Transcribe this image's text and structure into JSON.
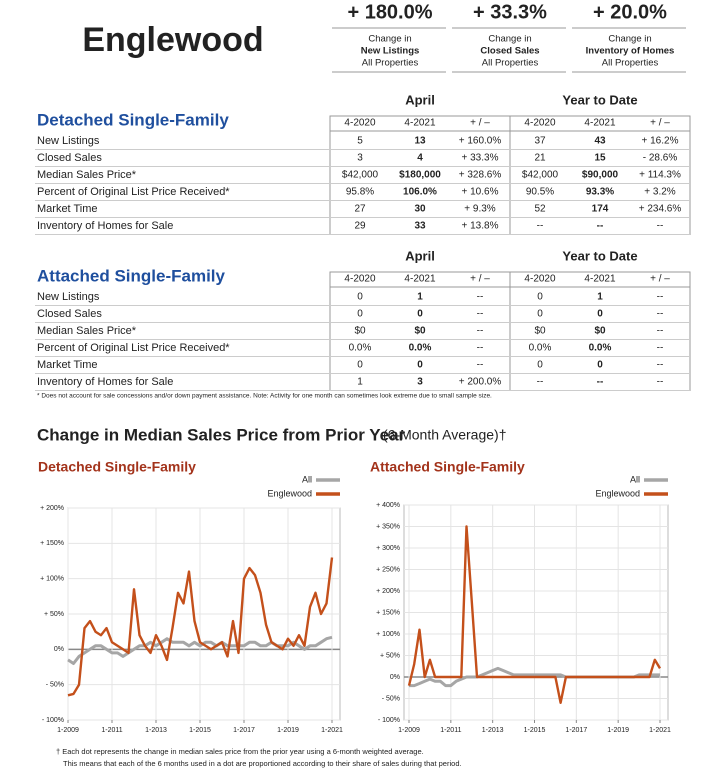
{
  "header": {
    "title": "Englewood",
    "metrics": [
      {
        "value": "+ 180.0%",
        "line1": "Change in",
        "line2": "New Listings",
        "line3": "All Properties"
      },
      {
        "value": "+ 33.3%",
        "line1": "Change in",
        "line2": "Closed Sales",
        "line3": "All Properties"
      },
      {
        "value": "+ 20.0%",
        "line1": "Change in",
        "line2": "Inventory of Homes",
        "line3": "All Properties"
      }
    ]
  },
  "tables": [
    {
      "title": "Detached Single-Family",
      "period1": "April",
      "period2": "Year to Date",
      "columns": [
        "4-2020",
        "4-2021",
        "+ / –",
        "4-2020",
        "4-2021",
        "+ / –"
      ],
      "rows": [
        [
          "New Listings",
          "5",
          "13",
          "+ 160.0%",
          "37",
          "43",
          "+ 16.2%"
        ],
        [
          "Closed Sales",
          "3",
          "4",
          "+ 33.3%",
          "21",
          "15",
          "- 28.6%"
        ],
        [
          "Median Sales Price*",
          "$42,000",
          "$180,000",
          "+ 328.6%",
          "$42,000",
          "$90,000",
          "+ 114.3%"
        ],
        [
          "Percent of Original List Price Received*",
          "95.8%",
          "106.0%",
          "+ 10.6%",
          "90.5%",
          "93.3%",
          "+ 3.2%"
        ],
        [
          "Market Time",
          "27",
          "30",
          "+ 9.3%",
          "52",
          "174",
          "+ 234.6%"
        ],
        [
          "Inventory of Homes for Sale",
          "29",
          "33",
          "+ 13.8%",
          "--",
          "--",
          "--"
        ]
      ]
    },
    {
      "title": "Attached Single-Family",
      "period1": "April",
      "period2": "Year to Date",
      "columns": [
        "4-2020",
        "4-2021",
        "+ / –",
        "4-2020",
        "4-2021",
        "+ / –"
      ],
      "rows": [
        [
          "New Listings",
          "0",
          "1",
          "--",
          "0",
          "1",
          "--"
        ],
        [
          "Closed Sales",
          "0",
          "0",
          "--",
          "0",
          "0",
          "--"
        ],
        [
          "Median Sales Price*",
          "$0",
          "$0",
          "--",
          "$0",
          "$0",
          "--"
        ],
        [
          "Percent of Original List Price Received*",
          "0.0%",
          "0.0%",
          "--",
          "0.0%",
          "0.0%",
          "--"
        ],
        [
          "Market Time",
          "0",
          "0",
          "--",
          "0",
          "0",
          "--"
        ],
        [
          "Inventory of Homes for Sale",
          "1",
          "3",
          "+ 200.0%",
          "--",
          "--",
          "--"
        ]
      ]
    }
  ],
  "table_note": "* Does not account for sale concessions and/or down payment assistance. Note: Activity for one month can sometimes look extreme due to small sample size.",
  "section_title": "Change in Median Sales Price from Prior Year",
  "section_subtitle": "(6-Month Average)†",
  "chart_data": [
    {
      "type": "line",
      "title": "Detached Single-Family",
      "legend": "top-right",
      "grid": true,
      "x": [
        "1-2009",
        "4-2009",
        "7-2009",
        "10-2009",
        "1-2010",
        "4-2010",
        "7-2010",
        "10-2010",
        "1-2011",
        "4-2011",
        "7-2011",
        "10-2011",
        "1-2012",
        "4-2012",
        "7-2012",
        "10-2012",
        "1-2013",
        "4-2013",
        "7-2013",
        "10-2013",
        "1-2014",
        "4-2014",
        "7-2014",
        "10-2014",
        "1-2015",
        "4-2015",
        "7-2015",
        "10-2015",
        "1-2016",
        "4-2016",
        "7-2016",
        "10-2016",
        "1-2017",
        "4-2017",
        "7-2017",
        "10-2017",
        "1-2018",
        "4-2018",
        "7-2018",
        "10-2018",
        "1-2019",
        "4-2019",
        "7-2019",
        "10-2019",
        "1-2020",
        "4-2020",
        "7-2020",
        "10-2020",
        "1-2021"
      ],
      "xticks": [
        "1-2009",
        "1-2011",
        "1-2013",
        "1-2015",
        "1-2017",
        "1-2019",
        "1-2021"
      ],
      "ylim": [
        -100,
        200
      ],
      "yticks": [
        {
          "value": -100,
          "label": "- 100%"
        },
        {
          "value": -50,
          "label": "- 50%"
        },
        {
          "value": 0,
          "label": "0%"
        },
        {
          "value": 50,
          "label": "+ 50%"
        },
        {
          "value": 100,
          "label": "+ 100%"
        },
        {
          "value": 150,
          "label": "+ 150%"
        },
        {
          "value": 200,
          "label": "+ 200%"
        }
      ],
      "series": [
        {
          "name": "All",
          "color": "#a6a6a6",
          "values": [
            -15,
            -20,
            -10,
            -5,
            0,
            5,
            5,
            0,
            -5,
            -5,
            -10,
            -5,
            0,
            5,
            5,
            10,
            5,
            10,
            15,
            10,
            10,
            10,
            5,
            10,
            5,
            10,
            10,
            5,
            10,
            5,
            5,
            5,
            5,
            10,
            10,
            5,
            5,
            10,
            5,
            5,
            5,
            10,
            5,
            0,
            5,
            5,
            10,
            15,
            17
          ]
        },
        {
          "name": "Englewood",
          "color": "#c4501b",
          "values": [
            -65,
            -63,
            -50,
            30,
            40,
            25,
            20,
            30,
            10,
            5,
            0,
            -5,
            85,
            20,
            5,
            -5,
            20,
            5,
            -15,
            30,
            80,
            65,
            110,
            40,
            10,
            5,
            0,
            5,
            10,
            -10,
            40,
            -5,
            100,
            115,
            105,
            80,
            35,
            10,
            5,
            0,
            15,
            5,
            20,
            5,
            60,
            80,
            50,
            65,
            130
          ]
        }
      ]
    },
    {
      "type": "line",
      "title": "Attached Single-Family",
      "legend": "top-right",
      "grid": true,
      "x": [
        "1-2009",
        "4-2009",
        "7-2009",
        "10-2009",
        "1-2010",
        "4-2010",
        "7-2010",
        "10-2010",
        "1-2011",
        "4-2011",
        "7-2011",
        "10-2011",
        "1-2012",
        "4-2012",
        "7-2012",
        "10-2012",
        "1-2013",
        "4-2013",
        "7-2013",
        "10-2013",
        "1-2014",
        "4-2014",
        "7-2014",
        "10-2014",
        "1-2015",
        "4-2015",
        "7-2015",
        "10-2015",
        "1-2016",
        "4-2016",
        "7-2016",
        "10-2016",
        "1-2017",
        "4-2017",
        "7-2017",
        "10-2017",
        "1-2018",
        "4-2018",
        "7-2018",
        "10-2018",
        "1-2019",
        "4-2019",
        "7-2019",
        "10-2019",
        "1-2020",
        "4-2020",
        "7-2020",
        "10-2020",
        "1-2021"
      ],
      "xticks": [
        "1-2009",
        "1-2011",
        "1-2013",
        "1-2015",
        "1-2017",
        "1-2019",
        "1-2021"
      ],
      "ylim": [
        -100,
        400
      ],
      "yticks": [
        {
          "value": -100,
          "label": "- 100%"
        },
        {
          "value": -50,
          "label": "- 50%"
        },
        {
          "value": 0,
          "label": "0%"
        },
        {
          "value": 50,
          "label": "+ 50%"
        },
        {
          "value": 100,
          "label": "+ 100%"
        },
        {
          "value": 150,
          "label": "+ 150%"
        },
        {
          "value": 200,
          "label": "+ 200%"
        },
        {
          "value": 250,
          "label": "+ 250%"
        },
        {
          "value": 300,
          "label": "+ 300%"
        },
        {
          "value": 350,
          "label": "+ 350%"
        },
        {
          "value": 400,
          "label": "+ 400%"
        }
      ],
      "series": [
        {
          "name": "All",
          "color": "#a6a6a6",
          "values": [
            -20,
            -20,
            -15,
            -10,
            -5,
            -10,
            -10,
            -20,
            -20,
            -10,
            -5,
            0,
            0,
            0,
            5,
            10,
            15,
            20,
            15,
            10,
            5,
            5,
            5,
            5,
            5,
            5,
            5,
            5,
            5,
            5,
            0,
            0,
            0,
            0,
            0,
            0,
            0,
            0,
            0,
            0,
            0,
            0,
            0,
            0,
            5,
            5,
            5,
            5,
            5
          ]
        },
        {
          "name": "Englewood",
          "color": "#c4501b",
          "values": [
            -20,
            30,
            110,
            0,
            40,
            0,
            0,
            0,
            0,
            0,
            0,
            350,
            175,
            0,
            0,
            0,
            0,
            0,
            0,
            0,
            0,
            0,
            0,
            0,
            0,
            0,
            0,
            0,
            0,
            -60,
            0,
            0,
            0,
            0,
            0,
            0,
            0,
            0,
            0,
            0,
            0,
            0,
            0,
            0,
            0,
            0,
            0,
            40,
            20
          ]
        }
      ]
    }
  ],
  "footnotes": [
    "† Each dot represents the change in median sales price from the prior year using a 6-month weighted average.",
    "This means that each of the 6 months used in a dot are proportioned according to their share of sales during that period."
  ]
}
